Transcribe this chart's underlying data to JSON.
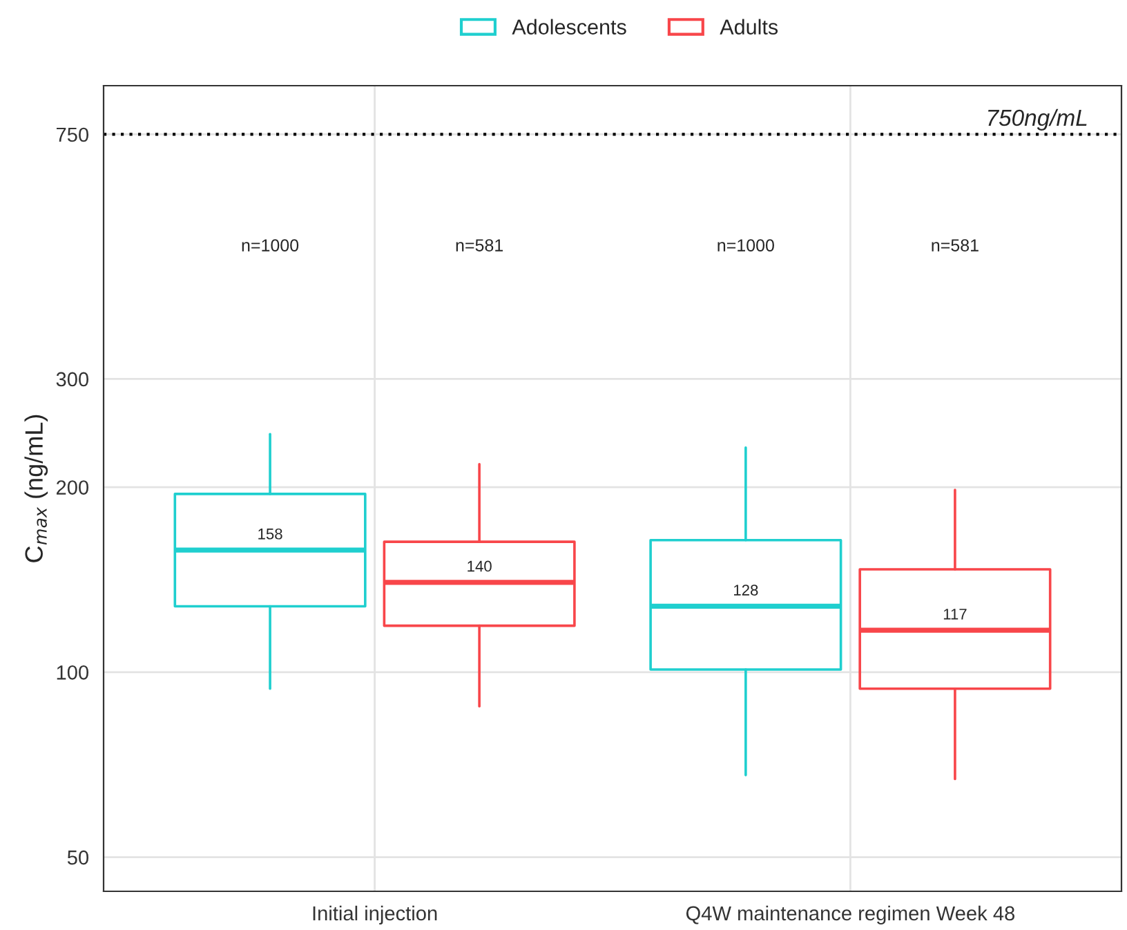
{
  "chart_data": {
    "type": "box",
    "ylabel": "C$_{max}$ (ng/mL)",
    "categories": [
      "Initial injection",
      "Q4W maintenance regimen Week 48"
    ],
    "series": [
      {
        "name": "Adolescents",
        "color": "#1fcfcf",
        "boxes": [
          {
            "low": 94,
            "q1": 128,
            "median": 158,
            "q3": 195,
            "high": 244
          },
          {
            "low": 68,
            "q1": 101,
            "median": 128,
            "q3": 164,
            "high": 232
          }
        ],
        "value_labels": [
          "158",
          "128"
        ]
      },
      {
        "name": "Adults",
        "color": "#f8464a",
        "boxes": [
          {
            "low": 88,
            "q1": 119,
            "median": 140,
            "q3": 163,
            "high": 218
          },
          {
            "low": 67,
            "q1": 94,
            "median": 117,
            "q3": 147,
            "high": 198
          }
        ],
        "value_labels": [
          "140",
          "117"
        ]
      }
    ],
    "log": true,
    "ylim": [
      44,
      900
    ],
    "yticks": [
      50,
      100,
      200,
      300,
      750
    ],
    "ref_lines": [
      {
        "axis": "y",
        "value": 750,
        "label": "750ng/mL",
        "color": "#000000",
        "line_style": "dotted"
      }
    ],
    "annotations": [
      "n=1000",
      "n=581",
      "n=1000",
      "n=581"
    ],
    "grid": true,
    "legend": "top"
  }
}
